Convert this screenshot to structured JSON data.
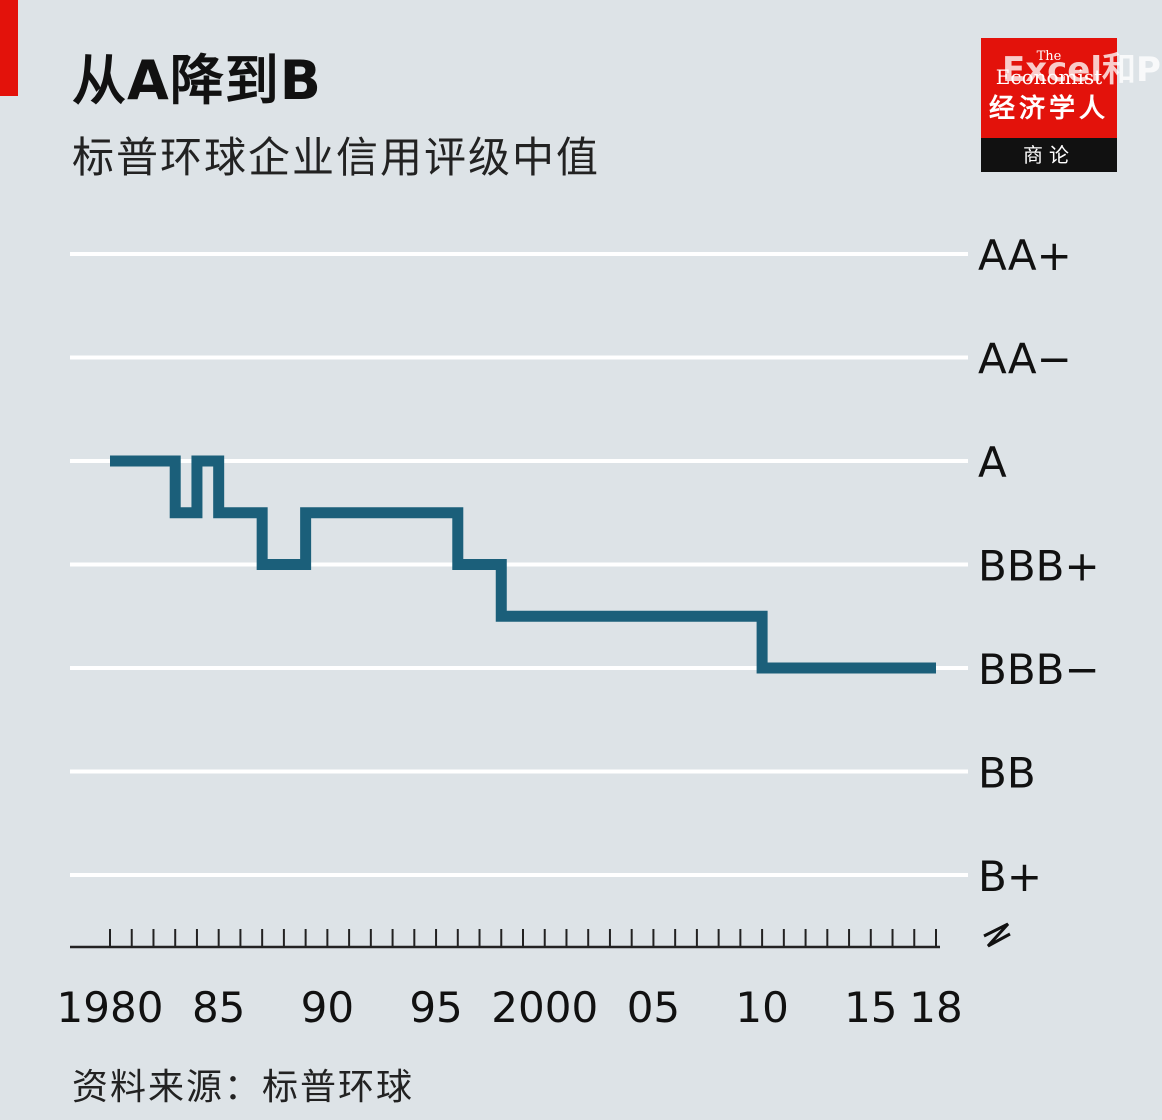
{
  "header": {
    "title": "从A降到B",
    "subtitle": "标普环球企业信用评级中值"
  },
  "logo": {
    "the": "The",
    "name": "Economist",
    "cn": "经济学人",
    "bar": "商论"
  },
  "watermark": "Excel和P",
  "source": "资料来源：标普环球",
  "colors": {
    "background": "#dde3e7",
    "line": "#1b5f7a",
    "gridline": "#ffffff",
    "accent": "#e3120b"
  },
  "chart_data": {
    "type": "line",
    "step": true,
    "title": "从A降到B",
    "subtitle": "标普环球企业信用评级中值",
    "ylabel": "",
    "xlabel": "",
    "y_categories": [
      "B+",
      "BB",
      "BBB−",
      "BBB+",
      "A",
      "AA−",
      "AA+"
    ],
    "xlim": [
      1980,
      2018
    ],
    "x_tick_labels": [
      {
        "value": 1980,
        "label": "1980"
      },
      {
        "value": 1985,
        "label": "85"
      },
      {
        "value": 1990,
        "label": "90"
      },
      {
        "value": 1995,
        "label": "95"
      },
      {
        "value": 2000,
        "label": "2000"
      },
      {
        "value": 2005,
        "label": "05"
      },
      {
        "value": 2010,
        "label": "10"
      },
      {
        "value": 2015,
        "label": "15"
      },
      {
        "value": 2018,
        "label": "18"
      }
    ],
    "axis_break": true,
    "grid": true,
    "series": [
      {
        "color": "#1b5f7a",
        "points": [
          {
            "x": 1980,
            "y": "A"
          },
          {
            "x": 1983,
            "y": "A-"
          },
          {
            "x": 1984,
            "y": "A"
          },
          {
            "x": 1985,
            "y": "A-"
          },
          {
            "x": 1987,
            "y": "BBB+"
          },
          {
            "x": 1989,
            "y": "A-"
          },
          {
            "x": 1996,
            "y": "BBB+"
          },
          {
            "x": 1998,
            "y": "BBB"
          },
          {
            "x": 2010,
            "y": "BBB−"
          },
          {
            "x": 2018,
            "y": "BBB−"
          }
        ]
      }
    ]
  }
}
